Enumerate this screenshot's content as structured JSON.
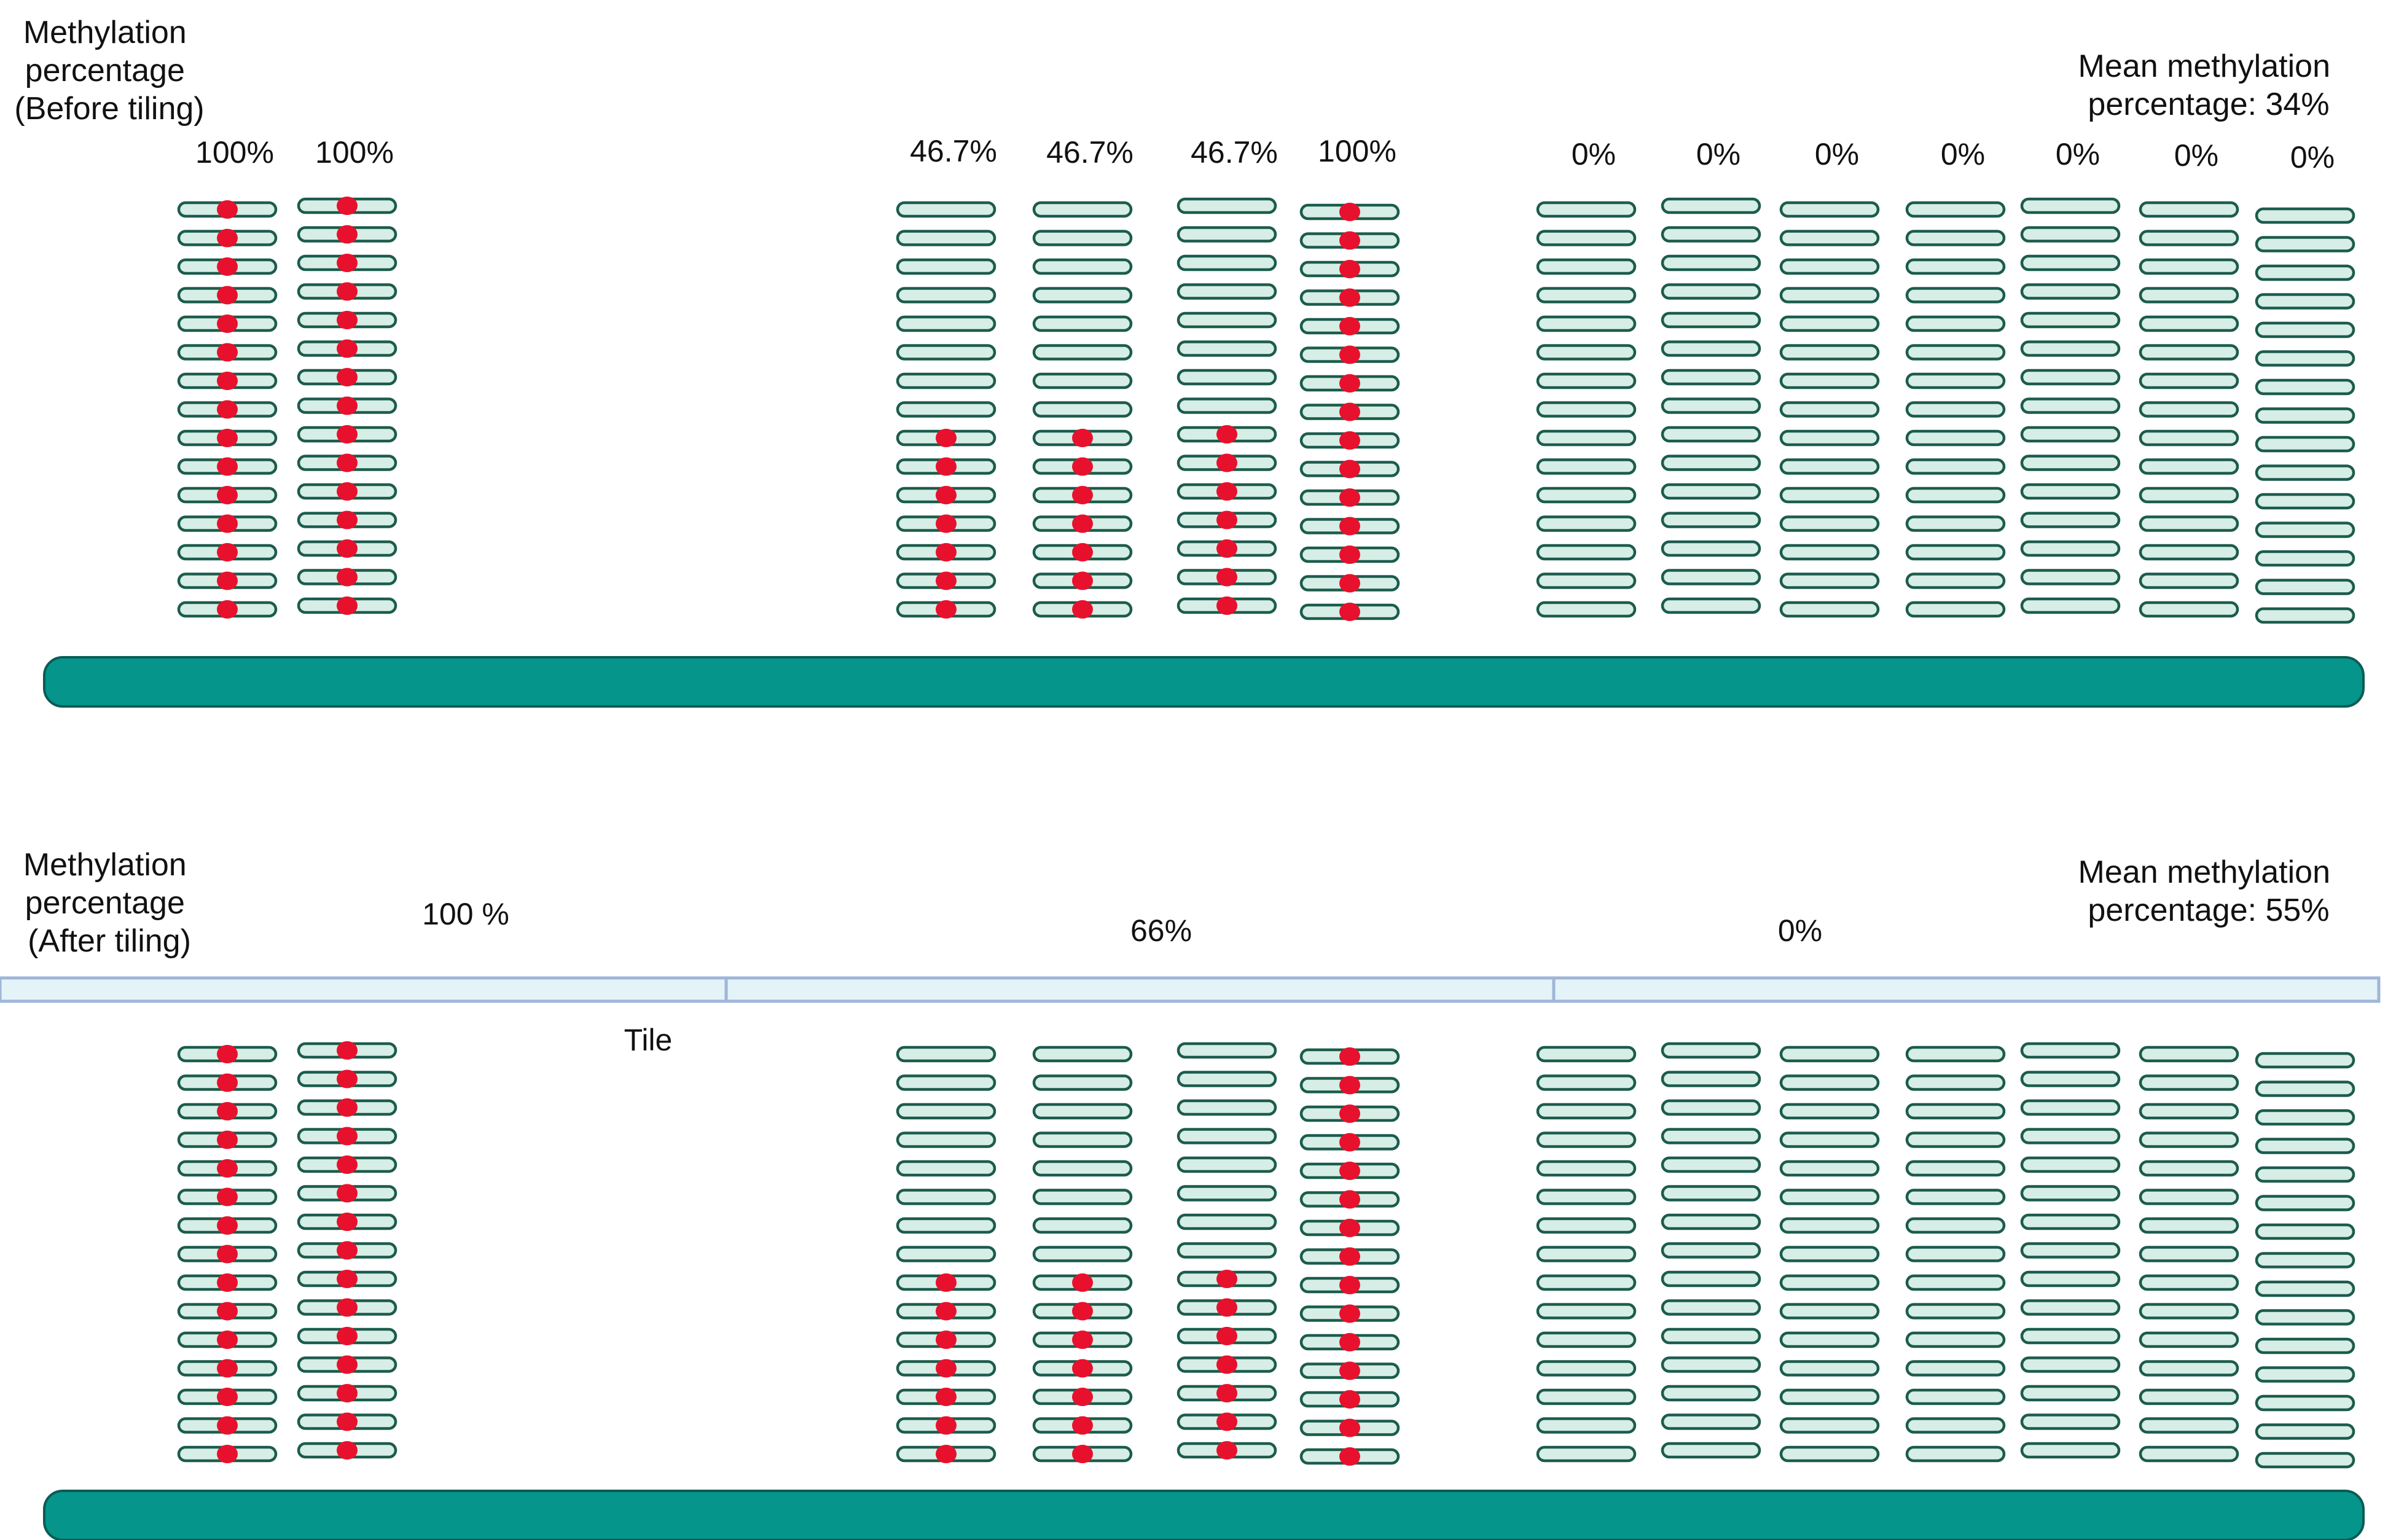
{
  "colors": {
    "read_fill": "#d6eee6",
    "read_stroke": "#1c5c4c",
    "methyl_dot": "#e8112d",
    "genome_bar": "#05958b",
    "genome_bar_stroke": "#0a5c55",
    "tile_fill": "#e3f3f8",
    "tile_stroke": "#9fb6d8"
  },
  "reads_per_column": 15,
  "columns": [
    {
      "label": "100%",
      "methylated_reads": 15
    },
    {
      "label": "100%",
      "methylated_reads": 15
    },
    {
      "label": "46.7%",
      "methylated_reads": 7
    },
    {
      "label": "46.7%",
      "methylated_reads": 7
    },
    {
      "label": "46.7%",
      "methylated_reads": 7
    },
    {
      "label": "100%",
      "methylated_reads": 15
    },
    {
      "label": "0%",
      "methylated_reads": 0
    },
    {
      "label": "0%",
      "methylated_reads": 0
    },
    {
      "label": "0%",
      "methylated_reads": 0
    },
    {
      "label": "0%",
      "methylated_reads": 0
    },
    {
      "label": "0%",
      "methylated_reads": 0
    },
    {
      "label": "0%",
      "methylated_reads": 0
    },
    {
      "label": "0%",
      "methylated_reads": 0
    }
  ],
  "before": {
    "heading": [
      "Methylation",
      "percentage",
      "(Before tiling)"
    ],
    "mean": [
      "Mean methylation",
      "percentage: 34%"
    ]
  },
  "after": {
    "heading": [
      "Methylation",
      "percentage",
      "(After tiling)"
    ],
    "mean": [
      "Mean methylation",
      "percentage: 55%"
    ],
    "tile_caption": "Tile",
    "tiles": [
      {
        "label": "100 %"
      },
      {
        "label": "66%"
      },
      {
        "label": "0%"
      }
    ]
  }
}
